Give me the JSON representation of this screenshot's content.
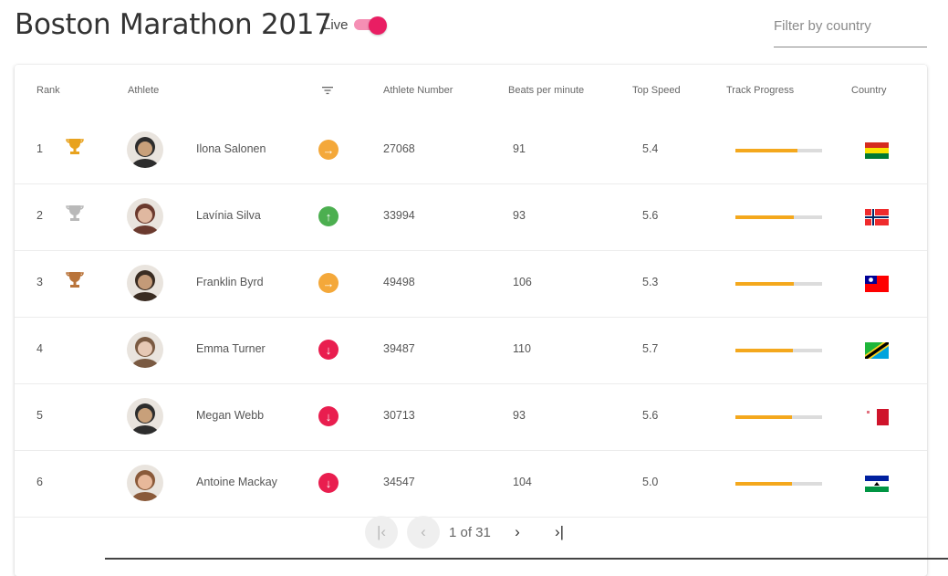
{
  "header": {
    "title": "Boston Marathon 2017",
    "live_label": "Live",
    "live_on": true,
    "filter_placeholder": "Filter by country",
    "accent_color": "#e91e63"
  },
  "table": {
    "columns": [
      "Rank",
      "Athlete",
      "",
      "Athlete Number",
      "Beats per minute",
      "Top Speed",
      "Track Progress",
      "Country"
    ],
    "sort_icon": "filter-list-icon",
    "rows": [
      {
        "rank": "1",
        "trophy": "gold-trophy-icon",
        "name": "Ilona Salonen",
        "trend": "right",
        "trend_color": "#f4a83a",
        "number": "27068",
        "bpm": "91",
        "speed": "5.4",
        "progress": 0.72,
        "country": "Bolivia"
      },
      {
        "rank": "2",
        "trophy": "silver-trophy-icon",
        "name": "Lavínia Silva",
        "trend": "up",
        "trend_color": "#4caf50",
        "number": "33994",
        "bpm": "93",
        "speed": "5.6",
        "progress": 0.67,
        "country": "Norway"
      },
      {
        "rank": "3",
        "trophy": "bronze-trophy-icon",
        "name": "Franklin Byrd",
        "trend": "right",
        "trend_color": "#f4a83a",
        "number": "49498",
        "bpm": "106",
        "speed": "5.3",
        "progress": 0.67,
        "country": "Taiwan"
      },
      {
        "rank": "4",
        "trophy": "",
        "name": "Emma Turner",
        "trend": "down",
        "trend_color": "#e91e4f",
        "number": "39487",
        "bpm": "110",
        "speed": "5.7",
        "progress": 0.66,
        "country": "Tanzania"
      },
      {
        "rank": "5",
        "trophy": "",
        "name": "Megan Webb",
        "trend": "down",
        "trend_color": "#e91e4f",
        "number": "30713",
        "bpm": "93",
        "speed": "5.6",
        "progress": 0.65,
        "country": "Malta"
      },
      {
        "rank": "6",
        "trophy": "",
        "name": "Antoine Mackay",
        "trend": "down",
        "trend_color": "#e91e4f",
        "number": "34547",
        "bpm": "104",
        "speed": "5.0",
        "progress": 0.65,
        "country": "Lesotho"
      }
    ]
  },
  "pagination": {
    "page_info": "1 of 31",
    "first_icon": "first-page-icon",
    "prev_icon": "chevron-left-icon",
    "next_icon": "chevron-right-icon",
    "last_icon": "last-page-icon"
  }
}
